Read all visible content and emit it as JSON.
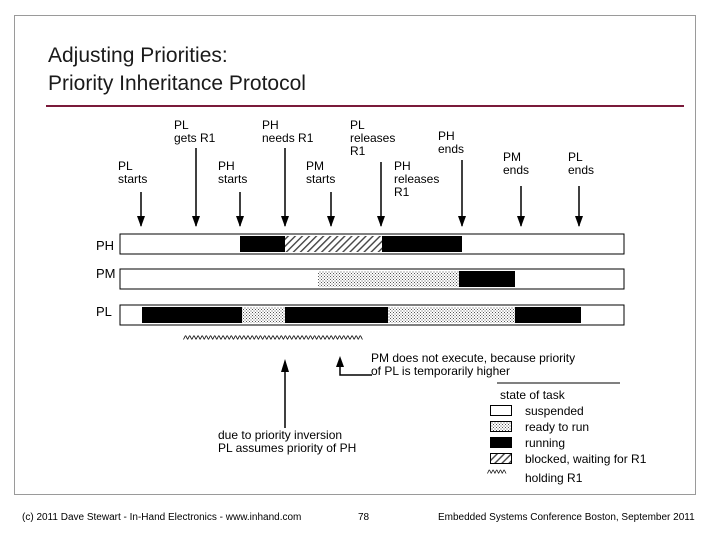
{
  "slide": {
    "title_line1": "Adjusting Priorities:",
    "title_line2": "Priority Inheritance Protocol",
    "colors": {
      "rule": "#7a1a3a",
      "frame": "#9a9a9a"
    }
  },
  "events": [
    {
      "id": "pl-starts",
      "lines": [
        "PL",
        "starts"
      ]
    },
    {
      "id": "pl-gets-r1",
      "lines": [
        "PL",
        "gets R1"
      ]
    },
    {
      "id": "ph-starts",
      "lines": [
        "PH",
        "starts"
      ]
    },
    {
      "id": "ph-needs-r1",
      "lines": [
        "PH",
        "needs R1"
      ]
    },
    {
      "id": "pm-starts",
      "lines": [
        "PM",
        "starts"
      ]
    },
    {
      "id": "pl-releases-r1",
      "lines": [
        "PL",
        "releases",
        "R1"
      ]
    },
    {
      "id": "ph-releases-r1",
      "lines": [
        "PH",
        "releases",
        "R1"
      ]
    },
    {
      "id": "ph-ends",
      "lines": [
        "PH",
        "ends"
      ]
    },
    {
      "id": "pm-ends",
      "lines": [
        "PM",
        "ends"
      ]
    },
    {
      "id": "pl-ends",
      "lines": [
        "PL",
        "ends"
      ]
    }
  ],
  "rows": [
    {
      "label": "PH",
      "segments": [
        "suspended",
        "running",
        "blocked",
        "running",
        "suspended"
      ]
    },
    {
      "label": "PM",
      "segments": [
        "suspended",
        "ready",
        "running",
        "suspended"
      ]
    },
    {
      "label": "PL",
      "segments": [
        "suspended",
        "running",
        "ready",
        "running",
        "ready",
        "running",
        "suspended"
      ]
    }
  ],
  "holding_marker": "^^^^^^^^^^^^^^^^^^^^^^^^^^^^^^^^^^^^^^^^^^^",
  "notes": {
    "pm_line1": "PM does not execute, because priority",
    "pm_line2": "of PL is temporarily higher",
    "inv_line1": "due to priority inversion",
    "inv_line2": "PL assumes priority of PH"
  },
  "legend": {
    "title": "state of task",
    "items": [
      {
        "state": "suspended",
        "label": "suspended"
      },
      {
        "state": "ready",
        "label": "ready to run"
      },
      {
        "state": "running",
        "label": "running"
      },
      {
        "state": "blocked",
        "label": "blocked, waiting for R1"
      }
    ],
    "holding_symbol": "^^^^^",
    "holding_label": "holding R1"
  },
  "footer": {
    "left": "(c) 2011 Dave Stewart - In-Hand Electronics - www.inhand.com",
    "page": "78",
    "right": "Embedded Systems Conference Boston, September 2011"
  }
}
